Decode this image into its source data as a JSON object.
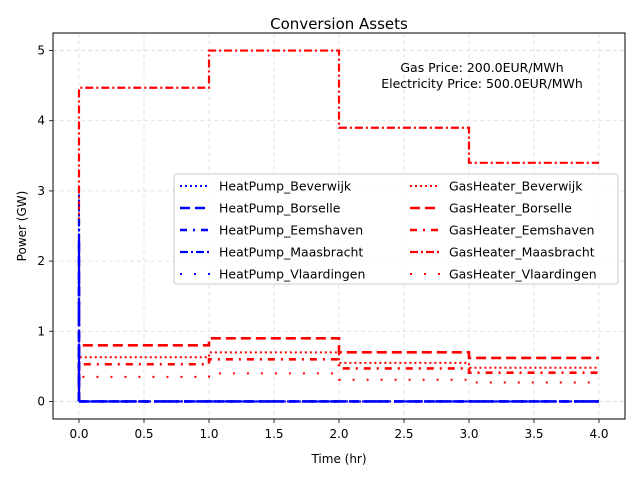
{
  "chart_data": {
    "type": "line",
    "title": "Conversion Assets",
    "xlabel": "Time (hr)",
    "ylabel": "Power (GW)",
    "xlim": [
      -0.2,
      4.2
    ],
    "ylim": [
      -0.25,
      5.25
    ],
    "xticks": [
      0.0,
      0.5,
      1.0,
      1.5,
      2.0,
      2.5,
      3.0,
      3.5,
      4.0
    ],
    "xtick_labels": [
      "0.0",
      "0.5",
      "1.0",
      "1.5",
      "2.0",
      "2.5",
      "3.0",
      "3.5",
      "4.0"
    ],
    "yticks": [
      0,
      1,
      2,
      3,
      4,
      5
    ],
    "ytick_labels": [
      "0",
      "1",
      "2",
      "3",
      "4",
      "5"
    ],
    "grid": true,
    "legend_position": "center-right",
    "legend_columns": 2,
    "annotations": [
      "Gas Price: 200.0EUR/MWh",
      "Electricity Price: 500.0EUR/MWh"
    ],
    "step_type": "post",
    "x": [
      0,
      1,
      2,
      3,
      4
    ],
    "series": [
      {
        "name": "HeatPump_Beverwijk",
        "values": [
          0,
          0,
          0,
          0,
          0
        ],
        "color": "#0000ff",
        "dash": "dotted"
      },
      {
        "name": "HeatPump_Borselle",
        "values": [
          0,
          0,
          0,
          0,
          0
        ],
        "color": "#0000ff",
        "dash": "long-dash"
      },
      {
        "name": "HeatPump_Eemshaven",
        "values": [
          0,
          0,
          0,
          0,
          0
        ],
        "color": "#0000ff",
        "dash": "dash-dot-sparse"
      },
      {
        "name": "HeatPump_Maasbracht",
        "values": [
          0,
          0,
          0,
          0,
          0
        ],
        "color": "#0000ff",
        "dash": "dash-dot"
      },
      {
        "name": "HeatPump_Vlaardingen",
        "values": [
          0,
          0,
          0,
          0,
          0
        ],
        "color": "#0000ff",
        "dash": "sparse-dot"
      },
      {
        "name": "GasHeater_Beverwijk",
        "values": [
          0.63,
          0.7,
          0.55,
          0.48,
          0.48
        ],
        "color": "#ff0000",
        "dash": "dotted"
      },
      {
        "name": "GasHeater_Borselle",
        "values": [
          0.8,
          0.9,
          0.7,
          0.62,
          0.62
        ],
        "color": "#ff0000",
        "dash": "long-dash"
      },
      {
        "name": "GasHeater_Eemshaven",
        "values": [
          0.53,
          0.6,
          0.47,
          0.41,
          0.41
        ],
        "color": "#ff0000",
        "dash": "dash-dot-sparse"
      },
      {
        "name": "GasHeater_Maasbracht",
        "values": [
          4.47,
          5.0,
          3.9,
          3.4,
          3.4
        ],
        "color": "#ff0000",
        "dash": "dash-dot"
      },
      {
        "name": "GasHeater_Vlaardingen",
        "values": [
          0.35,
          0.4,
          0.31,
          0.27,
          0.27
        ],
        "color": "#ff0000",
        "dash": "sparse-dot"
      }
    ],
    "initial_spike": {
      "x": 0,
      "values": [
        2.95,
        2.3,
        1.8,
        2.6,
        1.5
      ]
    }
  }
}
